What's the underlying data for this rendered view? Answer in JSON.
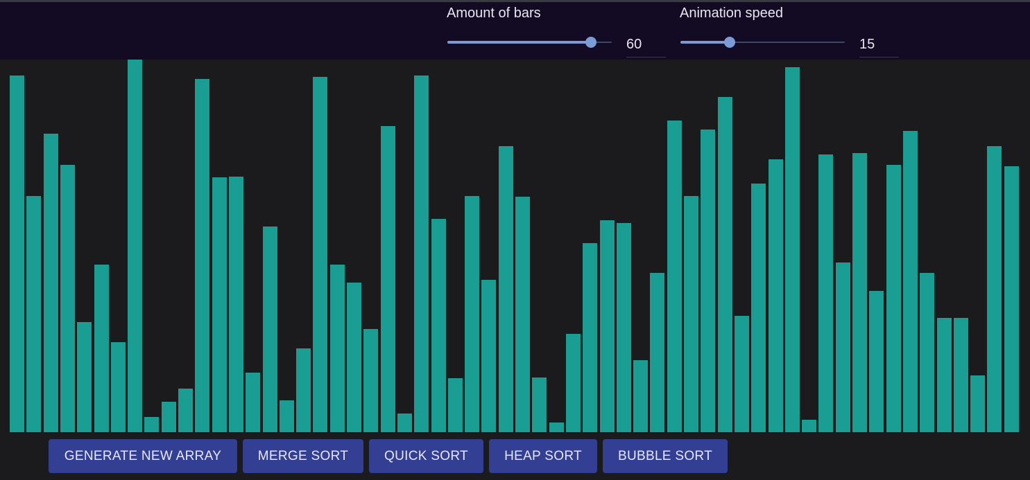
{
  "controls": {
    "bars": {
      "label": "Amount of bars",
      "value": "60",
      "level": 0.875
    },
    "speed": {
      "label": "Animation speed",
      "value": "15",
      "level": 0.3
    }
  },
  "colors": {
    "header": "#130b23",
    "background": "#1b1b1d",
    "bar": "#1a9d93",
    "accent": "#7b9bd6",
    "button": "#333f93"
  },
  "bar_values": [
    0.958,
    0.634,
    0.801,
    0.717,
    0.296,
    0.449,
    0.242,
    1.0,
    0.041,
    0.082,
    0.117,
    0.948,
    0.684,
    0.686,
    0.159,
    0.552,
    0.086,
    0.225,
    0.953,
    0.449,
    0.402,
    0.277,
    0.822,
    0.05,
    0.958,
    0.573,
    0.145,
    0.634,
    0.409,
    0.768,
    0.632,
    0.147,
    0.026,
    0.264,
    0.508,
    0.569,
    0.562,
    0.193,
    0.428,
    0.837,
    0.634,
    0.813,
    0.9,
    0.312,
    0.668,
    0.732,
    0.98,
    0.033,
    0.745,
    0.455,
    0.749,
    0.379,
    0.717,
    0.808,
    0.428,
    0.307,
    0.307,
    0.152,
    0.768,
    0.714
  ],
  "buttons": [
    "GENERATE NEW ARRAY",
    "MERGE SORT",
    "QUICK SORT",
    "HEAP SORT",
    "BUBBLE SORT"
  ]
}
